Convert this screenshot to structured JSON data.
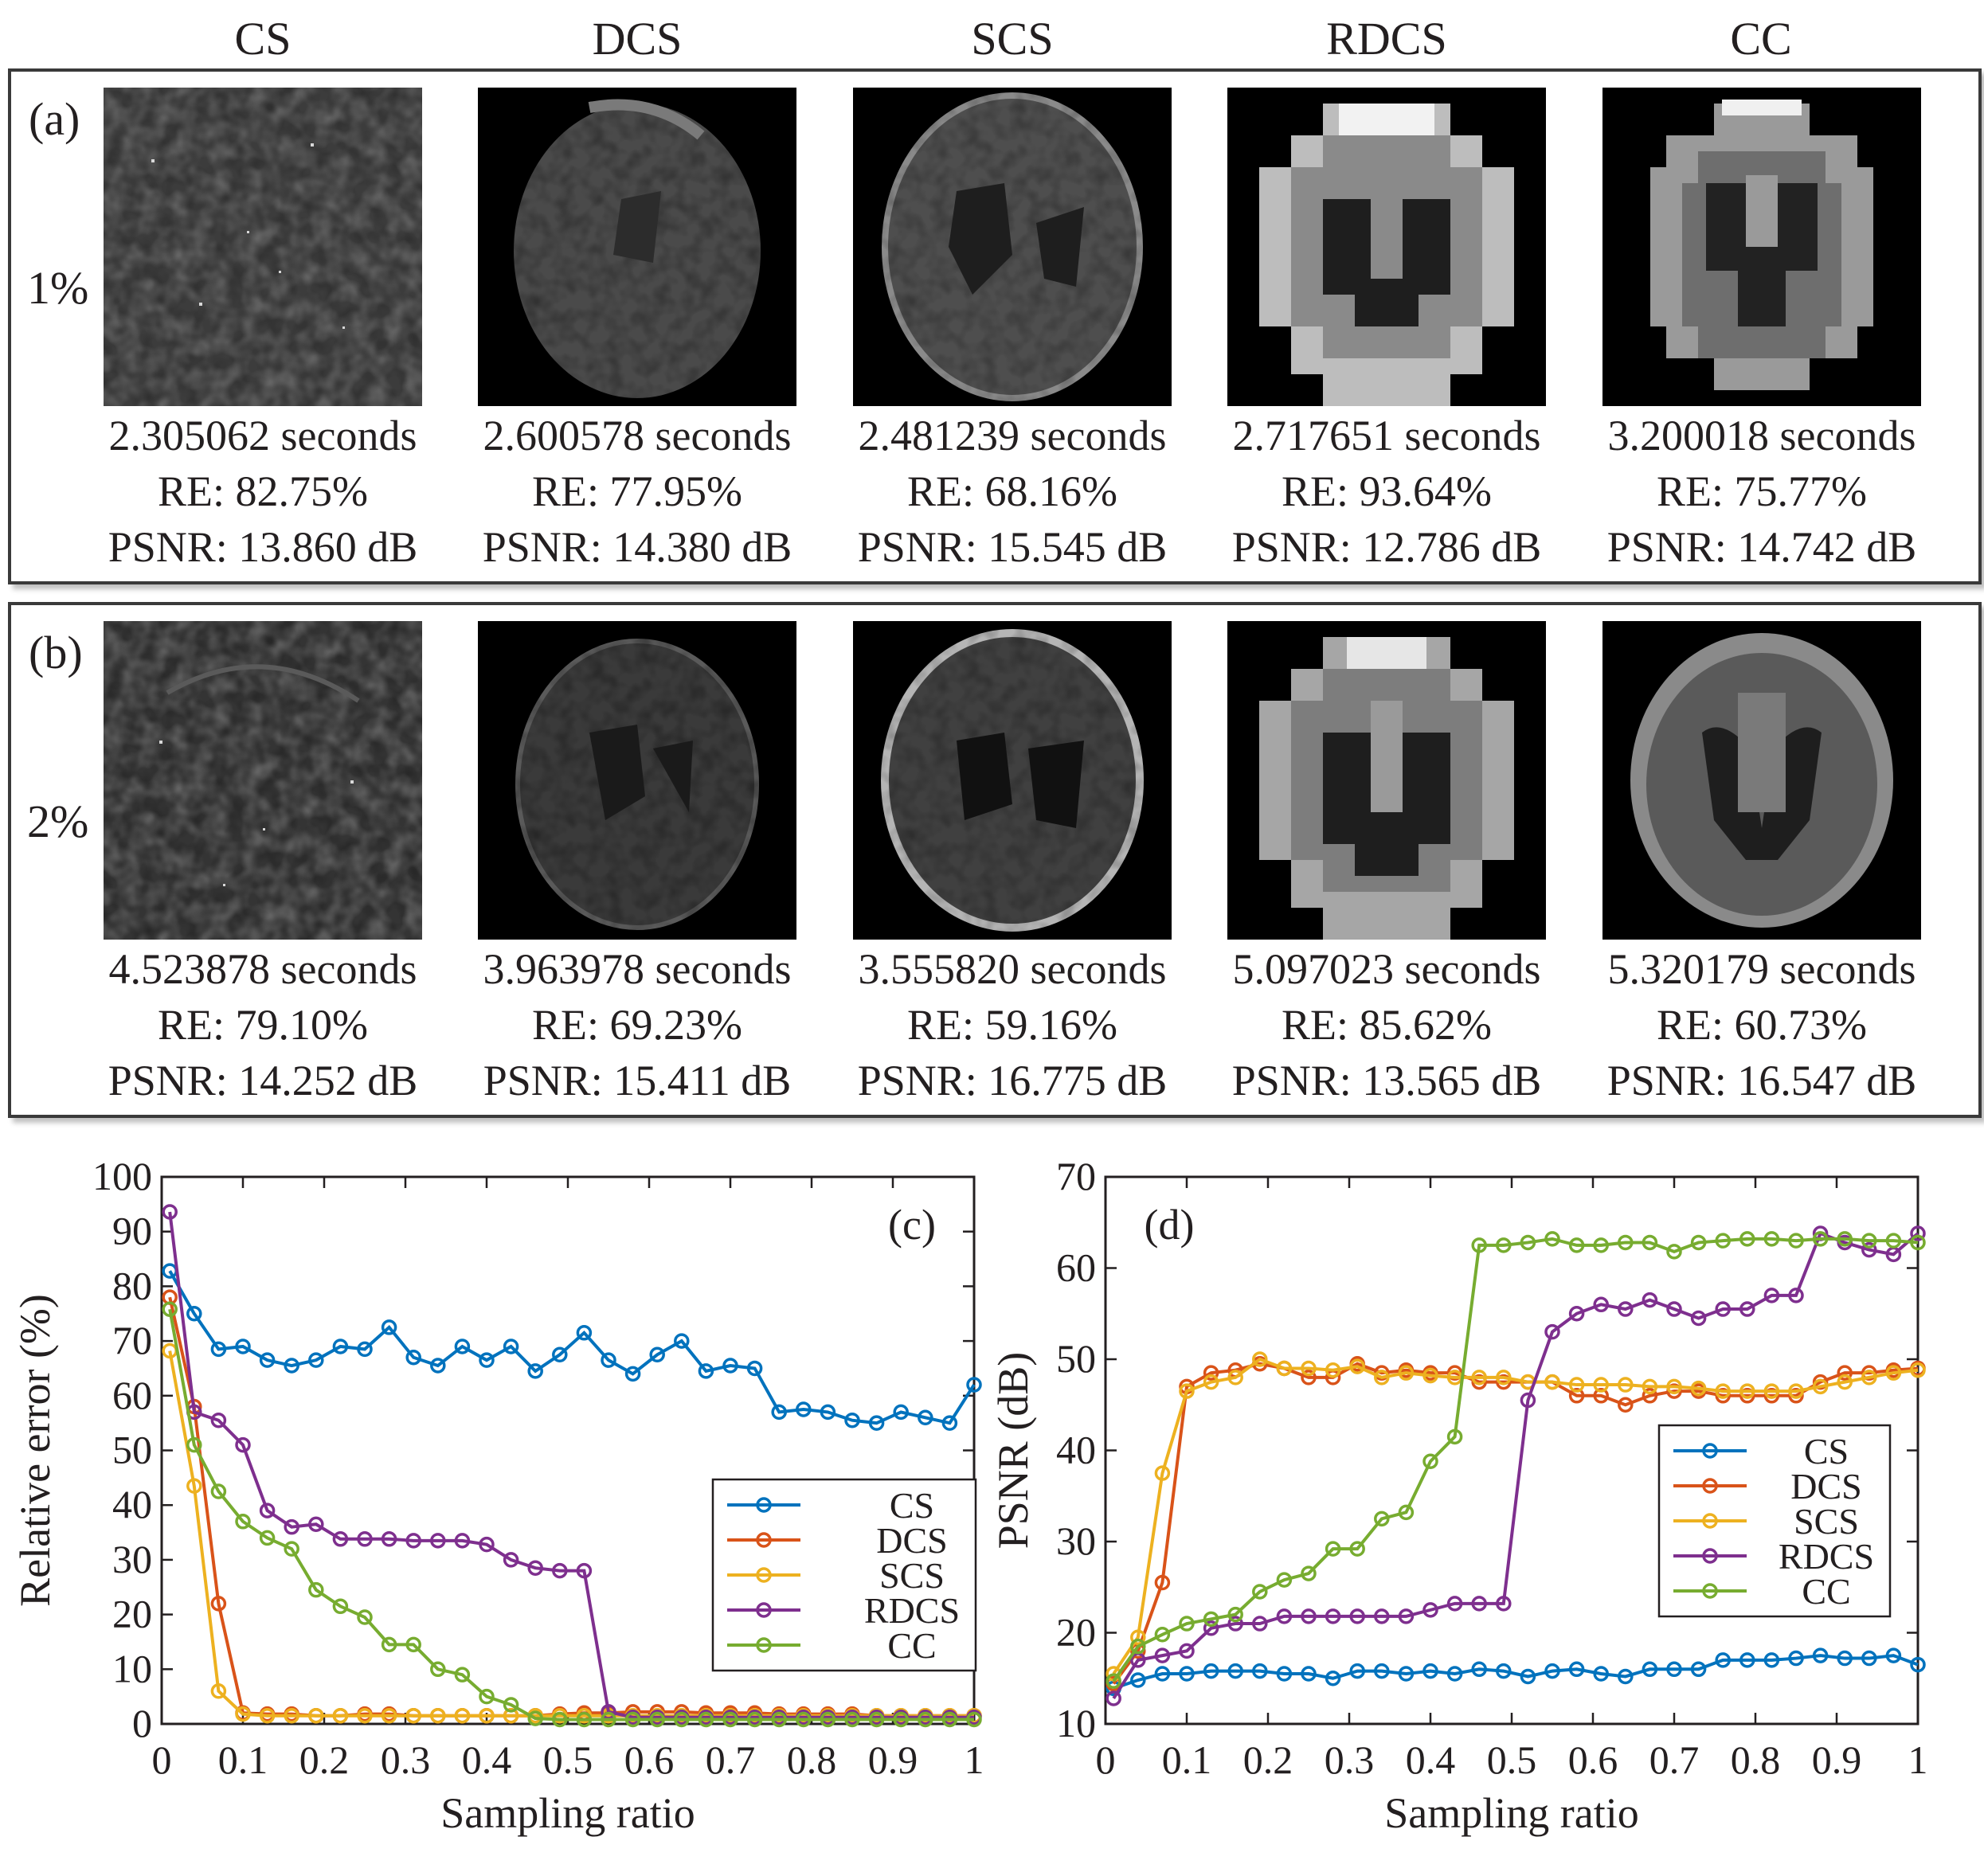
{
  "columns": [
    "CS",
    "DCS",
    "SCS",
    "RDCS",
    "CC"
  ],
  "panels": [
    {
      "label": "(a)",
      "ratio": "1%",
      "cells": [
        {
          "time": "2.305062 seconds",
          "re": "RE: 82.75%",
          "psnr": "PSNR: 13.860 dB"
        },
        {
          "time": "2.600578 seconds",
          "re": "RE: 77.95%",
          "psnr": "PSNR: 14.380 dB"
        },
        {
          "time": "2.481239 seconds",
          "re": "RE: 68.16%",
          "psnr": "PSNR: 15.545 dB"
        },
        {
          "time": "2.717651 seconds",
          "re": "RE: 93.64%",
          "psnr": "PSNR: 12.786 dB"
        },
        {
          "time": "3.200018 seconds",
          "re": "RE: 75.77%",
          "psnr": "PSNR: 14.742 dB"
        }
      ]
    },
    {
      "label": "(b)",
      "ratio": "2%",
      "cells": [
        {
          "time": "4.523878 seconds",
          "re": "RE: 79.10%",
          "psnr": "PSNR: 14.252 dB"
        },
        {
          "time": "3.963978 seconds",
          "re": "RE: 69.23%",
          "psnr": "PSNR: 15.411 dB"
        },
        {
          "time": "3.555820 seconds",
          "re": "RE: 59.16%",
          "psnr": "PSNR: 16.775 dB"
        },
        {
          "time": "5.097023 seconds",
          "re": "RE: 85.62%",
          "psnr": "PSNR: 13.565 dB"
        },
        {
          "time": "5.320179 seconds",
          "re": "RE: 60.73%",
          "psnr": "PSNR: 16.547 dB"
        }
      ]
    }
  ],
  "chart_data": [
    {
      "type": "line",
      "panel_label": "(c)",
      "xlabel": "Sampling ratio",
      "ylabel": "Relative error (%)",
      "xlim": [
        0,
        1
      ],
      "ylim": [
        0,
        100
      ],
      "xticks": [
        "0",
        "0.1",
        "0.2",
        "0.3",
        "0.4",
        "0.5",
        "0.6",
        "0.7",
        "0.8",
        "0.9",
        "1"
      ],
      "yticks": [
        "0",
        "10",
        "20",
        "30",
        "40",
        "50",
        "60",
        "70",
        "80",
        "90",
        "100"
      ],
      "legend_position": "center-right",
      "x": [
        0.01,
        0.04,
        0.07,
        0.1,
        0.13,
        0.16,
        0.19,
        0.22,
        0.25,
        0.28,
        0.31,
        0.34,
        0.37,
        0.4,
        0.43,
        0.46,
        0.49,
        0.52,
        0.55,
        0.58,
        0.61,
        0.64,
        0.67,
        0.7,
        0.73,
        0.76,
        0.79,
        0.82,
        0.85,
        0.88,
        0.91,
        0.94,
        0.97,
        1.0
      ],
      "series": [
        {
          "name": "CS",
          "color": "#0072bd",
          "values": [
            82.8,
            75,
            68.5,
            69,
            66.5,
            65.5,
            66.5,
            69,
            68.5,
            72.5,
            67,
            65.5,
            69,
            66.5,
            69,
            64.5,
            67.5,
            71.5,
            66.5,
            64,
            67.5,
            70,
            64.5,
            65.5,
            65,
            57,
            57.5,
            57,
            55.5,
            55,
            57,
            56,
            55,
            62
          ]
        },
        {
          "name": "DCS",
          "color": "#d95319",
          "values": [
            78,
            58,
            22,
            2,
            1.8,
            1.8,
            1.5,
            1.5,
            1.8,
            1.8,
            1.5,
            1.5,
            1.5,
            1.5,
            1.5,
            1.5,
            1.8,
            2,
            2,
            2.2,
            2.2,
            2.2,
            2,
            2,
            2,
            1.8,
            1.8,
            1.8,
            1.8,
            1.5,
            1.5,
            1.5,
            1.5,
            1.5
          ]
        },
        {
          "name": "SCS",
          "color": "#edb120",
          "values": [
            68.2,
            43.5,
            6,
            1.8,
            1.5,
            1.5,
            1.5,
            1.5,
            1.5,
            1.5,
            1.5,
            1.5,
            1.5,
            1.5,
            1.5,
            1.5,
            1.5,
            1.5,
            1.5,
            1.5,
            1.5,
            1.5,
            1.5,
            1.5,
            1.5,
            1.5,
            1.5,
            1.5,
            1.5,
            1.5,
            1.5,
            1.5,
            1.5,
            1.5
          ]
        },
        {
          "name": "RDCS",
          "color": "#7e2f8e",
          "values": [
            93.6,
            57,
            55.5,
            51,
            39,
            36,
            36.5,
            33.8,
            33.8,
            33.8,
            33.5,
            33.5,
            33.5,
            32.8,
            30,
            28.5,
            28,
            28,
            2.2,
            1.2,
            1.2,
            1.2,
            1.2,
            1.2,
            1.2,
            1.2,
            1.2,
            1.2,
            1.2,
            1.2,
            1.2,
            1.2,
            1.2,
            1.2
          ]
        },
        {
          "name": "CC",
          "color": "#77ac30",
          "values": [
            75.8,
            51,
            42.5,
            37,
            34,
            32,
            24.5,
            21.5,
            19.5,
            14.5,
            14.5,
            10,
            9,
            5,
            3.5,
            1,
            0.8,
            0.8,
            0.8,
            0.8,
            0.8,
            0.8,
            0.8,
            0.8,
            0.8,
            0.8,
            0.8,
            0.8,
            0.8,
            0.8,
            0.8,
            0.8,
            0.8,
            0.8
          ]
        }
      ]
    },
    {
      "type": "line",
      "panel_label": "(d)",
      "xlabel": "Sampling ratio",
      "ylabel": "PSNR (dB)",
      "xlim": [
        0,
        1
      ],
      "ylim": [
        10,
        70
      ],
      "xticks": [
        "0",
        "0.1",
        "0.2",
        "0.3",
        "0.4",
        "0.5",
        "0.6",
        "0.7",
        "0.8",
        "0.9",
        "1"
      ],
      "yticks": [
        "10",
        "20",
        "30",
        "40",
        "50",
        "60",
        "70"
      ],
      "legend_position": "right",
      "x": [
        0.01,
        0.04,
        0.07,
        0.1,
        0.13,
        0.16,
        0.19,
        0.22,
        0.25,
        0.28,
        0.31,
        0.34,
        0.37,
        0.4,
        0.43,
        0.46,
        0.49,
        0.52,
        0.55,
        0.58,
        0.61,
        0.64,
        0.67,
        0.7,
        0.73,
        0.76,
        0.79,
        0.82,
        0.85,
        0.88,
        0.91,
        0.94,
        0.97,
        1.0
      ],
      "series": [
        {
          "name": "CS",
          "color": "#0072bd",
          "values": [
            13.9,
            14.8,
            15.5,
            15.5,
            15.8,
            15.8,
            15.8,
            15.5,
            15.5,
            15,
            15.8,
            15.8,
            15.5,
            15.8,
            15.5,
            16,
            15.8,
            15.2,
            15.8,
            16,
            15.5,
            15.2,
            16,
            16,
            16,
            17,
            17,
            17,
            17.2,
            17.5,
            17.2,
            17.2,
            17.5,
            16.5
          ]
        },
        {
          "name": "DCS",
          "color": "#d95319",
          "values": [
            14.4,
            18,
            25.5,
            47,
            48.5,
            48.8,
            49.5,
            49,
            48,
            48,
            49.5,
            48.5,
            48.8,
            48.5,
            48.5,
            47.5,
            47.5,
            47.5,
            47.5,
            46,
            46,
            45,
            46,
            46.5,
            46.5,
            46,
            46,
            46,
            46,
            47.5,
            48.5,
            48.5,
            48.8,
            49
          ]
        },
        {
          "name": "SCS",
          "color": "#edb120",
          "values": [
            15.5,
            19.5,
            37.5,
            46.5,
            47.5,
            48,
            50,
            49,
            49,
            48.8,
            49.2,
            48,
            48.5,
            48.2,
            48,
            48,
            48,
            47.5,
            47.5,
            47.2,
            47.2,
            47.2,
            47,
            47,
            46.8,
            46.5,
            46.5,
            46.5,
            46.5,
            47,
            47.5,
            48,
            48.5,
            48.8
          ]
        },
        {
          "name": "RDCS",
          "color": "#7e2f8e",
          "values": [
            12.8,
            17,
            17.5,
            18,
            20.5,
            21,
            21,
            21.8,
            21.8,
            21.8,
            21.8,
            21.8,
            21.8,
            22.5,
            23.2,
            23.2,
            23.2,
            45.5,
            53,
            55,
            56,
            55.5,
            56.5,
            55.5,
            54.5,
            55.5,
            55.5,
            57,
            57,
            63.8,
            62.8,
            62,
            61.5,
            63.8
          ]
        },
        {
          "name": "CC",
          "color": "#77ac30",
          "values": [
            14.7,
            18.5,
            19.8,
            21,
            21.5,
            22,
            24.5,
            25.8,
            26.5,
            29.2,
            29.2,
            32.5,
            33.2,
            38.8,
            41.5,
            62.5,
            62.5,
            62.8,
            63.2,
            62.5,
            62.5,
            62.8,
            62.8,
            61.8,
            62.8,
            63,
            63.2,
            63.2,
            63,
            63.2,
            63.2,
            63,
            63,
            62.8
          ]
        }
      ]
    }
  ]
}
